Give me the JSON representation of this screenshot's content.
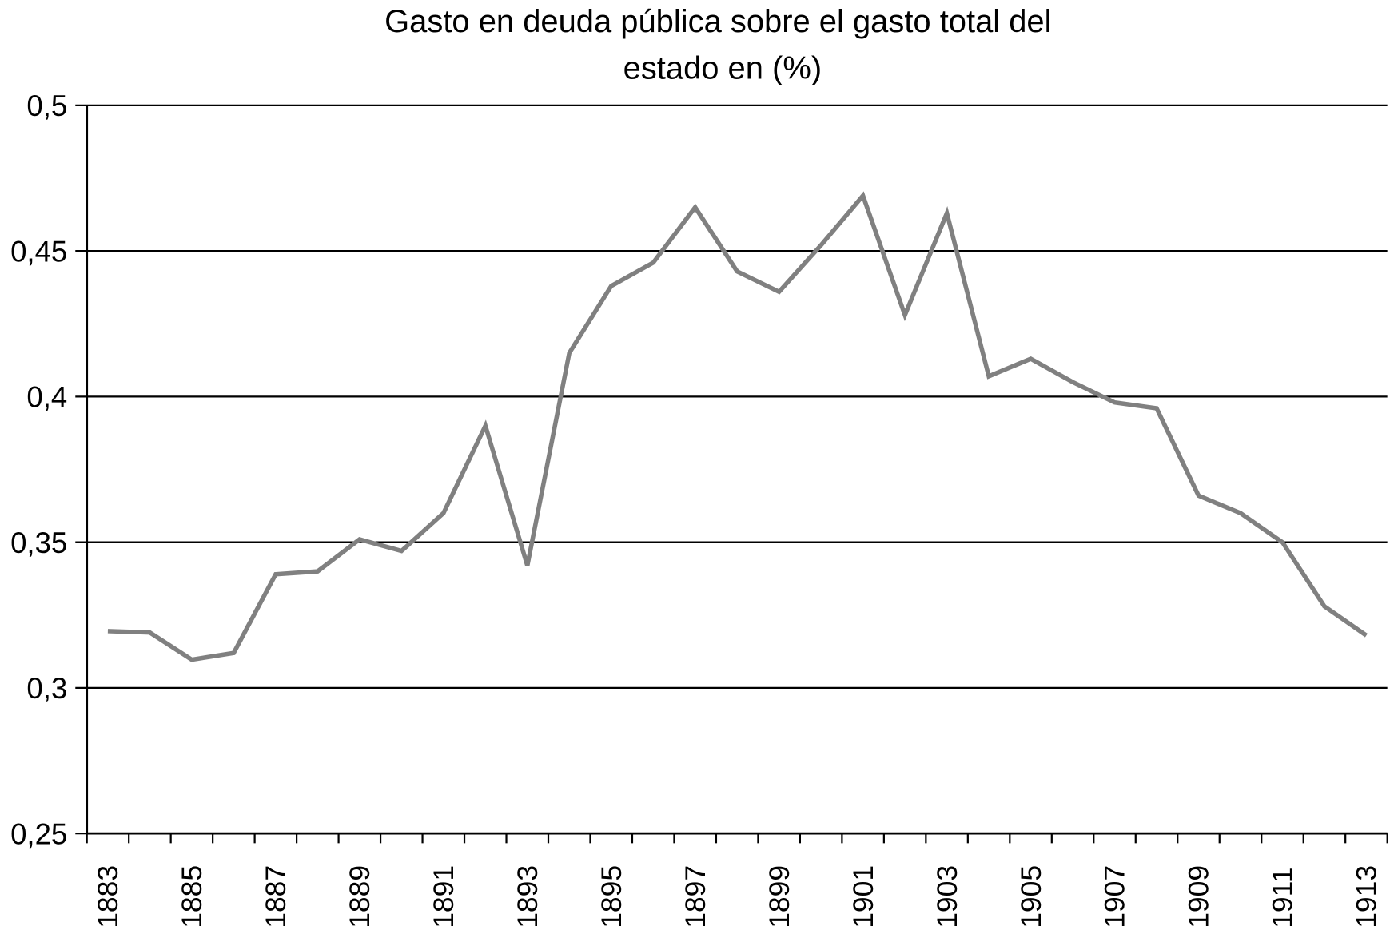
{
  "chart_data": {
    "type": "line",
    "title": "Gasto en deuda pública sobre el gasto total del estado en (%)",
    "title_lines": [
      "Gasto en deuda pública sobre el gasto total del",
      "estado en (%)"
    ],
    "xlabel": "",
    "ylabel": "",
    "ylim": [
      0.25,
      0.5
    ],
    "yticks": [
      0.25,
      0.3,
      0.35,
      0.4,
      0.45,
      0.5
    ],
    "ytick_labels": [
      "0,25",
      "0,3",
      "0,35",
      "0,4",
      "0,45",
      "0,5"
    ],
    "grid": true,
    "x": [
      1883,
      1884,
      1885,
      1886,
      1887,
      1888,
      1889,
      1890,
      1891,
      1892,
      1893,
      1894,
      1895,
      1896,
      1897,
      1898,
      1899,
      1900,
      1901,
      1902,
      1903,
      1904,
      1905,
      1906,
      1907,
      1908,
      1909,
      1910,
      1911,
      1912,
      1913
    ],
    "xtick_labels": [
      "1883",
      "1885",
      "1887",
      "1889",
      "1891",
      "1893",
      "1895",
      "1897",
      "1899",
      "1901",
      "1903",
      "1905",
      "1907",
      "1909",
      "1911",
      "1913"
    ],
    "series": [
      {
        "name": "Gasto en deuda pública",
        "color": "#808080",
        "values": [
          0.3195,
          0.319,
          0.3097,
          0.312,
          0.339,
          0.34,
          0.351,
          0.347,
          0.36,
          0.39,
          0.342,
          0.415,
          0.438,
          0.446,
          0.465,
          0.443,
          0.436,
          0.452,
          0.469,
          0.428,
          0.463,
          0.407,
          0.413,
          0.405,
          0.398,
          0.396,
          0.366,
          0.36,
          0.35,
          0.328,
          0.318
        ]
      }
    ]
  }
}
